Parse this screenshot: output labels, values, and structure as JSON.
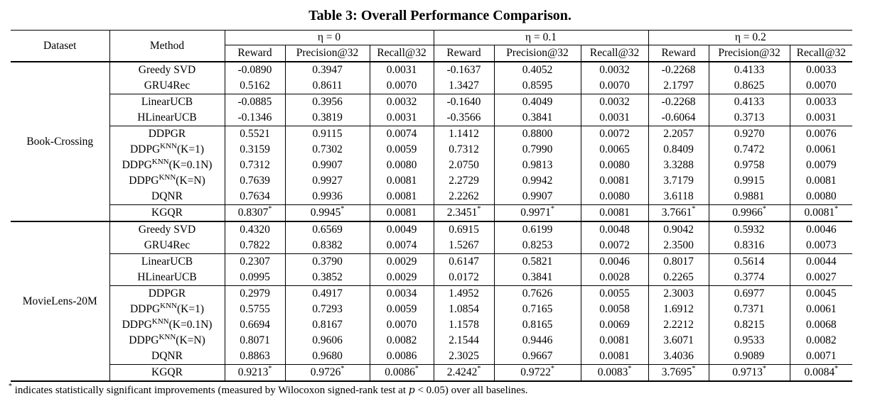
{
  "title": "Table 3: Overall Performance Comparison.",
  "header": {
    "dataset": "Dataset",
    "method": "Method",
    "groups": [
      "η = 0",
      "η = 0.1",
      "η = 0.2"
    ],
    "metrics": [
      "Reward",
      "Precision@32",
      "Recall@32"
    ]
  },
  "datasets": [
    {
      "name": "Book-Crossing",
      "rows": [
        {
          "method": "Greedy SVD",
          "values": [
            "-0.0890",
            "0.3947",
            "0.0031",
            "-0.1637",
            "0.4052",
            "0.0032",
            "-0.2268",
            "0.4133",
            "0.0033"
          ]
        },
        {
          "method": "GRU4Rec",
          "values": [
            "0.5162",
            "0.8611",
            "0.0070",
            "1.3427",
            "0.8595",
            "0.0070",
            "2.1797",
            "0.8625",
            "0.0070"
          ]
        },
        {
          "method": "LinearUCB",
          "values": [
            "-0.0885",
            "0.3956",
            "0.0032",
            "-0.1640",
            "0.4049",
            "0.0032",
            "-0.2268",
            "0.4133",
            "0.0033"
          ]
        },
        {
          "method": "HLinearUCB",
          "values": [
            "-0.1346",
            "0.3819",
            "0.0031",
            "-0.3566",
            "0.3841",
            "0.0031",
            "-0.6064",
            "0.3713",
            "0.0031"
          ]
        },
        {
          "method": "DDPGR",
          "values": [
            "0.5521",
            "0.9115",
            "0.0074",
            "1.1412",
            "0.8800",
            "0.0072",
            "2.2057",
            "0.9270",
            "0.0076"
          ]
        },
        {
          "method": "DDPG",
          "method_sup": "KNN",
          "method_suffix": "(K=1)",
          "values": [
            "0.3159",
            "0.7302",
            "0.0059",
            "0.7312",
            "0.7990",
            "0.0065",
            "0.8409",
            "0.7472",
            "0.0061"
          ]
        },
        {
          "method": "DDPG",
          "method_sup": "KNN",
          "method_suffix": "(K=0.1N)",
          "values": [
            "0.7312",
            "0.9907",
            "0.0080",
            "2.0750",
            "0.9813",
            "0.0080",
            "3.3288",
            "0.9758",
            "0.0079"
          ]
        },
        {
          "method": "DDPG",
          "method_sup": "KNN",
          "method_suffix": "(K=N)",
          "values": [
            "0.7639",
            "0.9927",
            "0.0081",
            "2.2729",
            "0.9942",
            "0.0081",
            "3.7179",
            "0.9915",
            "0.0081"
          ]
        },
        {
          "method": "DQNR",
          "values": [
            "0.7634",
            "0.9936",
            "0.0081",
            "2.2262",
            "0.9907",
            "0.0080",
            "3.6118",
            "0.9881",
            "0.0080"
          ]
        },
        {
          "method": "KGQR",
          "values": [
            "0.8307",
            "0.9945",
            "0.0081",
            "2.3451",
            "0.9971",
            "0.0081",
            "3.7661",
            "0.9966",
            "0.0081"
          ],
          "stars": [
            true,
            true,
            false,
            true,
            true,
            false,
            true,
            true,
            true
          ]
        }
      ]
    },
    {
      "name": "MovieLens-20M",
      "rows": [
        {
          "method": "Greedy SVD",
          "values": [
            "0.4320",
            "0.6569",
            "0.0049",
            "0.6915",
            "0.6199",
            "0.0048",
            "0.9042",
            "0.5932",
            "0.0046"
          ]
        },
        {
          "method": "GRU4Rec",
          "values": [
            "0.7822",
            "0.8382",
            "0.0074",
            "1.5267",
            "0.8253",
            "0.0072",
            "2.3500",
            "0.8316",
            "0.0073"
          ]
        },
        {
          "method": "LinearUCB",
          "values": [
            "0.2307",
            "0.3790",
            "0.0029",
            "0.6147",
            "0.5821",
            "0.0046",
            "0.8017",
            "0.5614",
            "0.0044"
          ]
        },
        {
          "method": "HLinearUCB",
          "values": [
            "0.0995",
            "0.3852",
            "0.0029",
            "0.0172",
            "0.3841",
            "0.0028",
            "0.2265",
            "0.3774",
            "0.0027"
          ]
        },
        {
          "method": "DDPGR",
          "values": [
            "0.2979",
            "0.4917",
            "0.0034",
            "1.4952",
            "0.7626",
            "0.0055",
            "2.3003",
            "0.6977",
            "0.0045"
          ]
        },
        {
          "method": "DDPG",
          "method_sup": "KNN",
          "method_suffix": "(K=1)",
          "values": [
            "0.5755",
            "0.7293",
            "0.0059",
            "1.0854",
            "0.7165",
            "0.0058",
            "1.6912",
            "0.7371",
            "0.0061"
          ]
        },
        {
          "method": "DDPG",
          "method_sup": "KNN",
          "method_suffix": "(K=0.1N)",
          "values": [
            "0.6694",
            "0.8167",
            "0.0070",
            "1.1578",
            "0.8165",
            "0.0069",
            "2.2212",
            "0.8215",
            "0.0068"
          ]
        },
        {
          "method": "DDPG",
          "method_sup": "KNN",
          "method_suffix": "(K=N)",
          "values": [
            "0.8071",
            "0.9606",
            "0.0082",
            "2.1544",
            "0.9446",
            "0.0081",
            "3.6071",
            "0.9533",
            "0.0082"
          ]
        },
        {
          "method": "DQNR",
          "values": [
            "0.8863",
            "0.9680",
            "0.0086",
            "2.3025",
            "0.9667",
            "0.0081",
            "3.4036",
            "0.9089",
            "0.0071"
          ]
        },
        {
          "method": "KGQR",
          "values": [
            "0.9213",
            "0.9726",
            "0.0086",
            "2.4242",
            "0.9722",
            "0.0083",
            "3.7695",
            "0.9713",
            "0.0084"
          ],
          "stars": [
            true,
            true,
            true,
            true,
            true,
            true,
            true,
            true,
            true
          ]
        }
      ]
    }
  ],
  "star_mark": "*",
  "footnote": {
    "mark": "*",
    "text_before": " indicates statistically significant improvements (measured by Wilocoxon signed-rank test at ",
    "math_var": "p",
    "math_rest": " < 0.05",
    "text_after": ") over all baselines."
  }
}
